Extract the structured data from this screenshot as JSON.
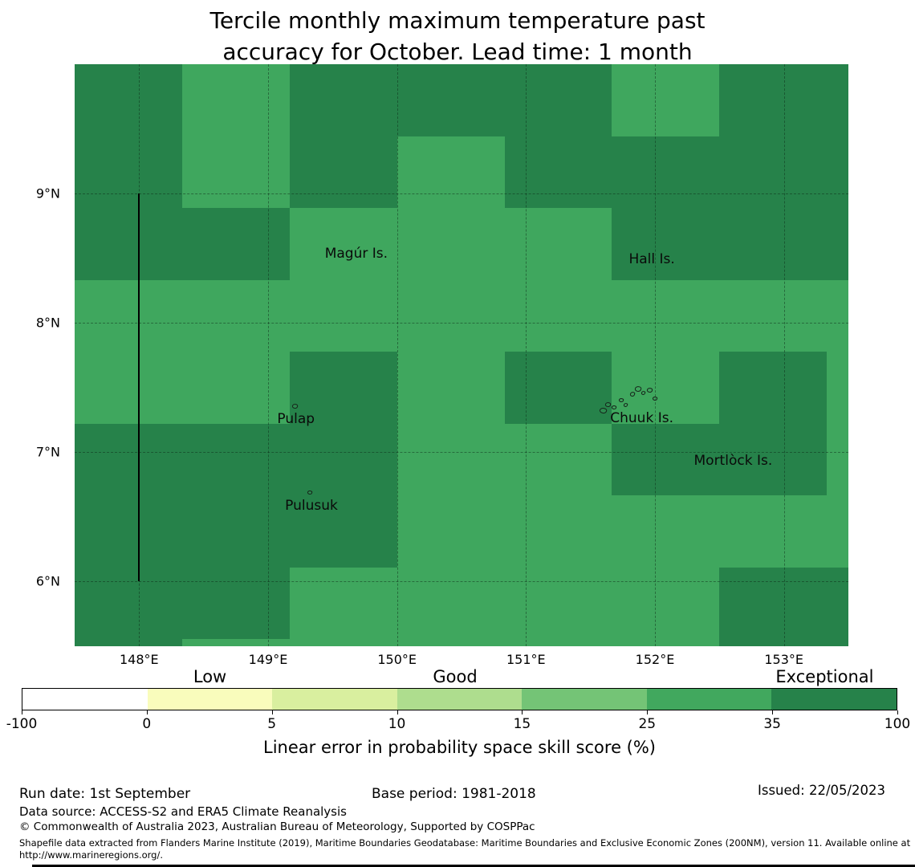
{
  "title": {
    "text": "Tercile monthly maximum temperature past\naccuracy for October. Lead time: 1 month"
  },
  "chart_data": {
    "type": "heatmap",
    "subtype": "geographic-skill-map",
    "region": "Chuuk area, Federated States of Micronesia",
    "lon_range": [
      147.5,
      153.5
    ],
    "lat_range": [
      5.5,
      10.0
    ],
    "lon_edges": [
      147.5,
      148.333,
      149.167,
      150.0,
      150.833,
      151.667,
      152.5,
      153.333,
      153.5
    ],
    "lat_edges": [
      10.0,
      9.444,
      8.889,
      8.333,
      7.778,
      7.222,
      6.667,
      6.111,
      5.556,
      5.5
    ],
    "cell_bins": [
      [
        "D",
        "M",
        "D",
        "D",
        "D",
        "M",
        "D",
        "D"
      ],
      [
        "D",
        "M",
        "D",
        "M",
        "D",
        "D",
        "D",
        "D"
      ],
      [
        "D",
        "D",
        "M",
        "M",
        "M",
        "D",
        "D",
        "D"
      ],
      [
        "M",
        "M",
        "M",
        "M",
        "M",
        "M",
        "M",
        "M"
      ],
      [
        "M",
        "M",
        "D",
        "M",
        "D",
        "M",
        "D",
        "M"
      ],
      [
        "D",
        "D",
        "D",
        "M",
        "M",
        "D",
        "D",
        "M"
      ],
      [
        "D",
        "D",
        "D",
        "M",
        "M",
        "M",
        "M",
        "M"
      ],
      [
        "D",
        "D",
        "M",
        "M",
        "M",
        "M",
        "D",
        "D"
      ],
      [
        "D",
        "M",
        "M",
        "M",
        "M",
        "M",
        "D",
        "D"
      ]
    ],
    "bin_meaning": {
      "M": "skill score 25-35%",
      "D": "skill score 35-100%"
    },
    "bin_colors": {
      "M": "#3FA75E",
      "D": "#26824A"
    },
    "grid_on": true,
    "grid_lons": [
      148,
      149,
      150,
      151,
      152,
      153
    ],
    "grid_lats": [
      9,
      8,
      7,
      6
    ],
    "xtick_labels": [
      "148°E",
      "149°E",
      "150°E",
      "151°E",
      "152°E",
      "153°E"
    ],
    "ytick_labels": [
      "9°N",
      "8°N",
      "7°N",
      "6°N"
    ],
    "boundary_line": {
      "lon": 148,
      "lat_from": 9,
      "lat_to": 6
    },
    "islands": [
      {
        "label": "Magúr Is.",
        "x_pct": 36.4,
        "y_pct": 32.6
      },
      {
        "label": "Hall Is.",
        "x_pct": 74.6,
        "y_pct": 33.5
      },
      {
        "label": "Pulap",
        "x_pct": 28.6,
        "y_pct": 61.0
      },
      {
        "label": "Pulusuk",
        "x_pct": 30.6,
        "y_pct": 75.9
      },
      {
        "label": "Chuuk Is.",
        "x_pct": 73.3,
        "y_pct": 60.8
      },
      {
        "label": "Mortlòck Is.",
        "x_pct": 85.1,
        "y_pct": 68.2
      }
    ],
    "island_marks": [
      [
        28.1,
        58.3,
        5,
        4
      ],
      [
        30.1,
        73.2,
        4,
        3
      ],
      [
        67.8,
        59.0,
        7,
        5
      ],
      [
        68.6,
        58.0,
        5,
        4
      ],
      [
        69.4,
        58.6,
        4,
        3
      ],
      [
        70.3,
        57.4,
        4,
        3
      ],
      [
        71.0,
        58.2,
        3,
        3
      ],
      [
        71.8,
        56.3,
        4,
        4
      ],
      [
        72.4,
        55.3,
        6,
        5
      ],
      [
        73.2,
        56.2,
        3,
        3
      ],
      [
        74.0,
        55.6,
        5,
        4
      ],
      [
        74.7,
        57.1,
        4,
        3
      ]
    ],
    "colorbar": {
      "tick_labels": [
        "-100",
        "0",
        "5",
        "10",
        "15",
        "25",
        "35",
        "100"
      ],
      "segment_colors": [
        "#ffffff",
        "#f9fcbc",
        "#d9ef9f",
        "#aedd8e",
        "#74c476",
        "#41a85e",
        "#26824a"
      ],
      "categories": [
        {
          "label": "Low",
          "pos_pct": 21.5
        },
        {
          "label": "Good",
          "pos_pct": 49.5
        },
        {
          "label": "Exceptional",
          "pos_pct": 91.7
        }
      ],
      "axis_label": "Linear error in probability space skill score (%)"
    }
  },
  "footer": {
    "run_date": "Run date: 1st September",
    "base_period": "Base period: 1981-2018",
    "issued": "Issued: 22/05/2023",
    "data_source": "Data source: ACCESS-S2 and ERA5 Climate Reanalysis",
    "copyright": "© Commonwealth of Australia 2023, Australian Bureau of Meteorology, Supported by COSPPac",
    "shapefile_note": "Shapefile data extracted from Flanders Marine Institute (2019), Maritime Boundaries Geodatabase: Maritime Boundaries and Exclusive Economic Zones (200NM), version 11. Available online at http://www.marineregions.org/."
  }
}
